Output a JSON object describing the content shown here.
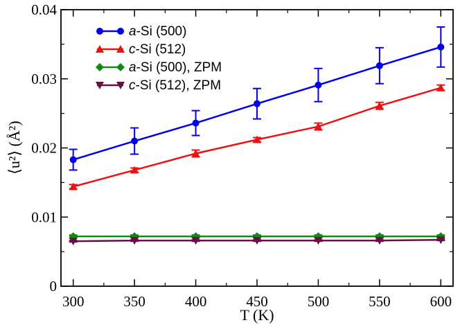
{
  "chart_data": {
    "type": "line",
    "xlabel": "T (K)",
    "ylabel": "⟨u²⟩ (Å²)",
    "xlim": [
      290,
      610
    ],
    "ylim": [
      0,
      0.04
    ],
    "xticks": [
      300,
      350,
      400,
      450,
      500,
      550,
      600
    ],
    "xtick_labels": [
      "300",
      "350",
      "400",
      "450",
      "500",
      "550",
      "600"
    ],
    "yticks": [
      0,
      0.01,
      0.02,
      0.03,
      0.04
    ],
    "ytick_labels": [
      "0",
      "0.01",
      "0.02",
      "0.03",
      "0.04"
    ],
    "legend_position": "top-left",
    "x": [
      300,
      350,
      400,
      450,
      500,
      550,
      600
    ],
    "series": [
      {
        "name": "a-Si (500)",
        "legend": {
          "italic": "a",
          "rest": "-Si (500)"
        },
        "color": "#0000ee",
        "marker": "circle",
        "values": [
          0.0183,
          0.021,
          0.0236,
          0.0264,
          0.0291,
          0.0319,
          0.0346
        ],
        "errors": [
          0.0015,
          0.0019,
          0.0018,
          0.0022,
          0.0024,
          0.0026,
          0.0029
        ]
      },
      {
        "name": "c-Si (512)",
        "legend": {
          "italic": "c",
          "rest": "-Si (512)"
        },
        "color": "#ee1111",
        "marker": "triangle-up",
        "values": [
          0.0144,
          0.0168,
          0.0192,
          0.0212,
          0.0231,
          0.0261,
          0.0287
        ],
        "errors": [
          0.0003,
          0.0003,
          0.0005,
          0.0003,
          0.0005,
          0.0005,
          0.0004
        ]
      },
      {
        "name": "a-Si (500), ZPM",
        "legend": {
          "italic": "a",
          "rest": "-Si (500), ZPM"
        },
        "color": "#118811",
        "marker": "diamond",
        "values": [
          0.0072,
          0.0072,
          0.0072,
          0.0072,
          0.0072,
          0.0072,
          0.0072
        ],
        "errors": [
          0.0002,
          0.0002,
          0.0002,
          0.0002,
          0.0002,
          0.0002,
          0.0002
        ]
      },
      {
        "name": "c-Si (512), ZPM",
        "legend": {
          "italic": "c",
          "rest": "-Si (512), ZPM"
        },
        "color": "#661144",
        "marker": "triangle-down",
        "values": [
          0.0065,
          0.0066,
          0.0066,
          0.0066,
          0.0066,
          0.0066,
          0.0067
        ],
        "errors": [
          0.0001,
          0.0001,
          0.0001,
          0.0001,
          0.0001,
          0.0001,
          0.0001
        ]
      }
    ]
  }
}
